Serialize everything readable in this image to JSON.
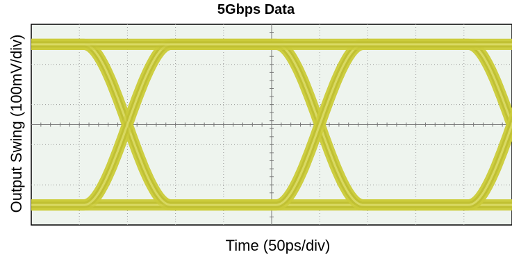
{
  "chart_data": {
    "type": "line",
    "title": "5Gbps Data",
    "xlabel": "Time (50ps/div)",
    "ylabel": "Output Swing (100mV/div)",
    "grid": true,
    "x_divisions": 10,
    "y_divisions": 5,
    "x_units": "ps",
    "y_units": "mV",
    "xlim": [
      0,
      500
    ],
    "ylim": [
      -250,
      250
    ],
    "bit_period_ps": 200,
    "crossing_points_ps": [
      100,
      300,
      500
    ],
    "signal_levels_mV": {
      "high": 200,
      "low": -200
    },
    "trace_color": "#cccc3a",
    "plot_background": "#eef4ee"
  }
}
